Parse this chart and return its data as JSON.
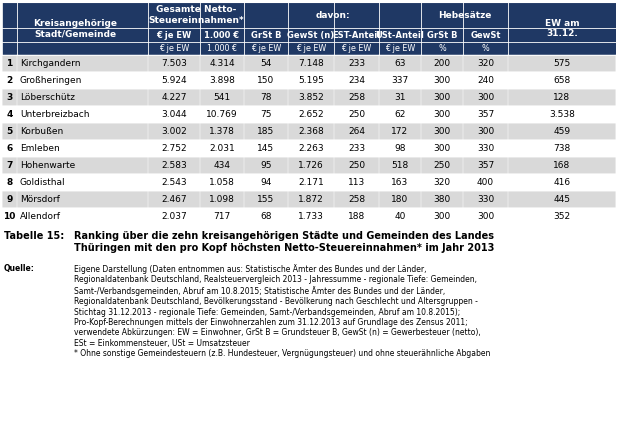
{
  "rows": [
    [
      "1",
      "Kirchgandern",
      "7.503",
      "4.314",
      "54",
      "7.148",
      "233",
      "63",
      "200",
      "320",
      "575"
    ],
    [
      "2",
      "Großheringen",
      "5.924",
      "3.898",
      "150",
      "5.195",
      "234",
      "337",
      "300",
      "240",
      "658"
    ],
    [
      "3",
      "Löberschütz",
      "4.227",
      "541",
      "78",
      "3.852",
      "258",
      "31",
      "300",
      "300",
      "128"
    ],
    [
      "4",
      "Unterbreizbach",
      "3.044",
      "10.769",
      "75",
      "2.652",
      "250",
      "62",
      "300",
      "357",
      "3.538"
    ],
    [
      "5",
      "Korbußen",
      "3.002",
      "1.378",
      "185",
      "2.368",
      "264",
      "172",
      "300",
      "300",
      "459"
    ],
    [
      "6",
      "Emleben",
      "2.752",
      "2.031",
      "145",
      "2.263",
      "233",
      "98",
      "300",
      "330",
      "738"
    ],
    [
      "7",
      "Hohenwarte",
      "2.583",
      "434",
      "95",
      "1.726",
      "250",
      "518",
      "250",
      "357",
      "168"
    ],
    [
      "8",
      "Goldisthal",
      "2.543",
      "1.058",
      "94",
      "2.171",
      "113",
      "163",
      "320",
      "400",
      "416"
    ],
    [
      "9",
      "Mörsdorf",
      "2.467",
      "1.098",
      "155",
      "1.872",
      "258",
      "180",
      "380",
      "330",
      "445"
    ],
    [
      "10",
      "Allendorf",
      "2.037",
      "717",
      "68",
      "1.733",
      "188",
      "40",
      "300",
      "300",
      "352"
    ]
  ],
  "caption_label": "Tabelle 15:",
  "caption_text": "Ranking über die zehn kreisangehörigen Städte und Gemeinden des Landes\nThüringen mit den pro Kopf höchsten Netto-Steuereinnahmen* im Jahr 2013",
  "source_label": "Quelle:",
  "source_text": "Eigene Darstellung (Daten entnommen aus: Statistische Ämter des Bundes und der Länder,\nRegionaldatenbank Deutschland, Realsteuervergleich 2013 - Jahressumme - regionale Tiefe: Gemeinden,\nSamt-/Verbandsgemeinden, Abruf am 10.8.2015; Statistische Ämter des Bundes und der Länder,\nRegionaldatenbank Deutschland, Bevölkerungsstand - Bevölkerung nach Geschlecht und Altersgruppen -\nStichtag 31.12.2013 - regionale Tiefe: Gemeinden, Samt-/Verbandsgemeinden, Abruf am 10.8.2015);\nPro-Kopf-Berechnungen mittels der Einwohnerzahlen zum 31.12.2013 auf Grundlage des Zensus 2011;\nverwendete Abkürzungen: EW = Einwohner, GrSt B = Grundsteuer B, GewSt (n) = Gewerbesteuer (netto),\nESt = Einkommensteuer, USt = Umsatzsteuer\n* Ohne sonstige Gemeindesteuern (z.B. Hundesteuer, Vergnügungsteuer) und ohne steuerähnliche Abgaben",
  "header_bg": "#1F3864",
  "header_fg": "#FFFFFF",
  "row_odd_bg": "#D9D9D9",
  "row_even_bg": "#FFFFFF",
  "fig_bg": "#FFFFFF"
}
